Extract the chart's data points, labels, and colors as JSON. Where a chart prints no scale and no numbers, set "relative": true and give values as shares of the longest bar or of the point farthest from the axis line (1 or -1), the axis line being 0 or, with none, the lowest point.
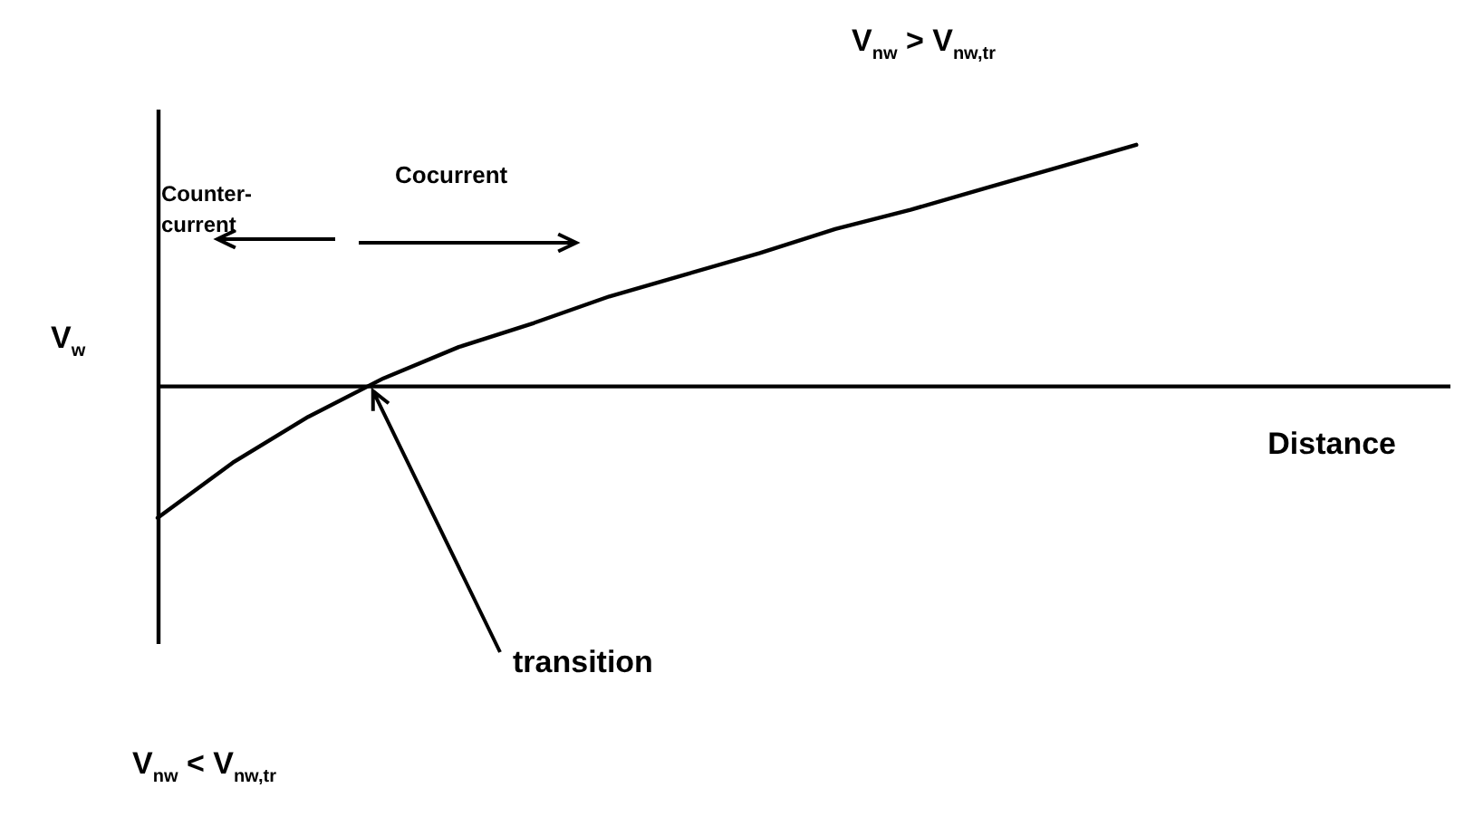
{
  "chart_data": {
    "type": "line",
    "relative": true,
    "xlabel": "Distance",
    "ylabel": "V$_{w}$",
    "grid": false,
    "legend": false,
    "marker": "none",
    "line_style": "solid",
    "categories": [
      null,
      null,
      null,
      null,
      null,
      null,
      null,
      null,
      null,
      null,
      null,
      null,
      null,
      null
    ],
    "series": [
      {
        "color": "#000000",
        "values": [
          -0.55,
          -0.32,
          -0.13,
          0.03,
          0.16,
          0.26,
          0.37,
          0.46,
          0.55,
          0.65,
          0.73,
          0.82,
          0.91,
          1
        ]
      }
    ],
    "annotations": [
      "V$_{nw}$ > V$_{nw,tr}$",
      "Counter-current",
      "Cocurrent",
      "transition",
      "V$_{nw}$ < V$_{nw,tr}$"
    ]
  }
}
